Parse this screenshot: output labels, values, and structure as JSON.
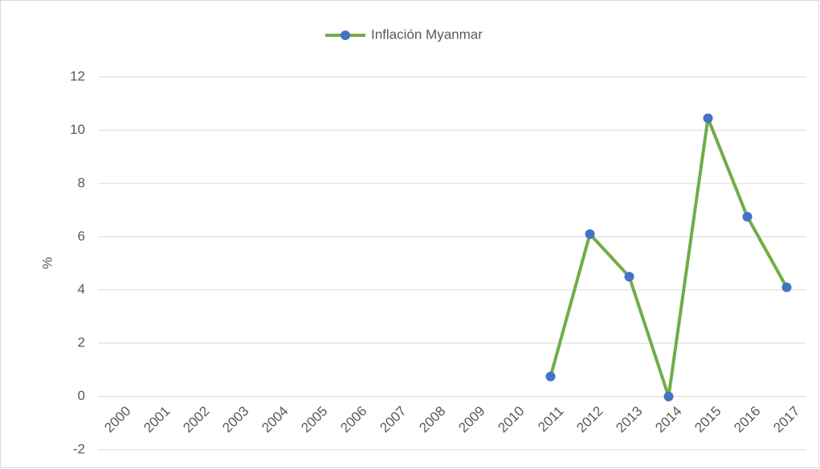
{
  "chart_data": {
    "type": "line",
    "categories": [
      "2000",
      "2001",
      "2002",
      "2003",
      "2004",
      "2005",
      "2006",
      "2007",
      "2008",
      "2009",
      "2010",
      "2011",
      "2012",
      "2013",
      "2014",
      "2015",
      "2016",
      "2017"
    ],
    "series": [
      {
        "name": "Inflación Myanmar",
        "color": "#70ad47",
        "marker_color": "#4472c4",
        "values": [
          null,
          null,
          null,
          null,
          null,
          null,
          null,
          null,
          null,
          null,
          null,
          0.75,
          6.1,
          4.5,
          0,
          10.45,
          6.75,
          4.1
        ]
      }
    ],
    "ylabel": "%",
    "ylim": [
      -2,
      12
    ],
    "yticks": [
      -2,
      0,
      2,
      4,
      6,
      8,
      10,
      12
    ],
    "grid": true,
    "legend": "top"
  }
}
